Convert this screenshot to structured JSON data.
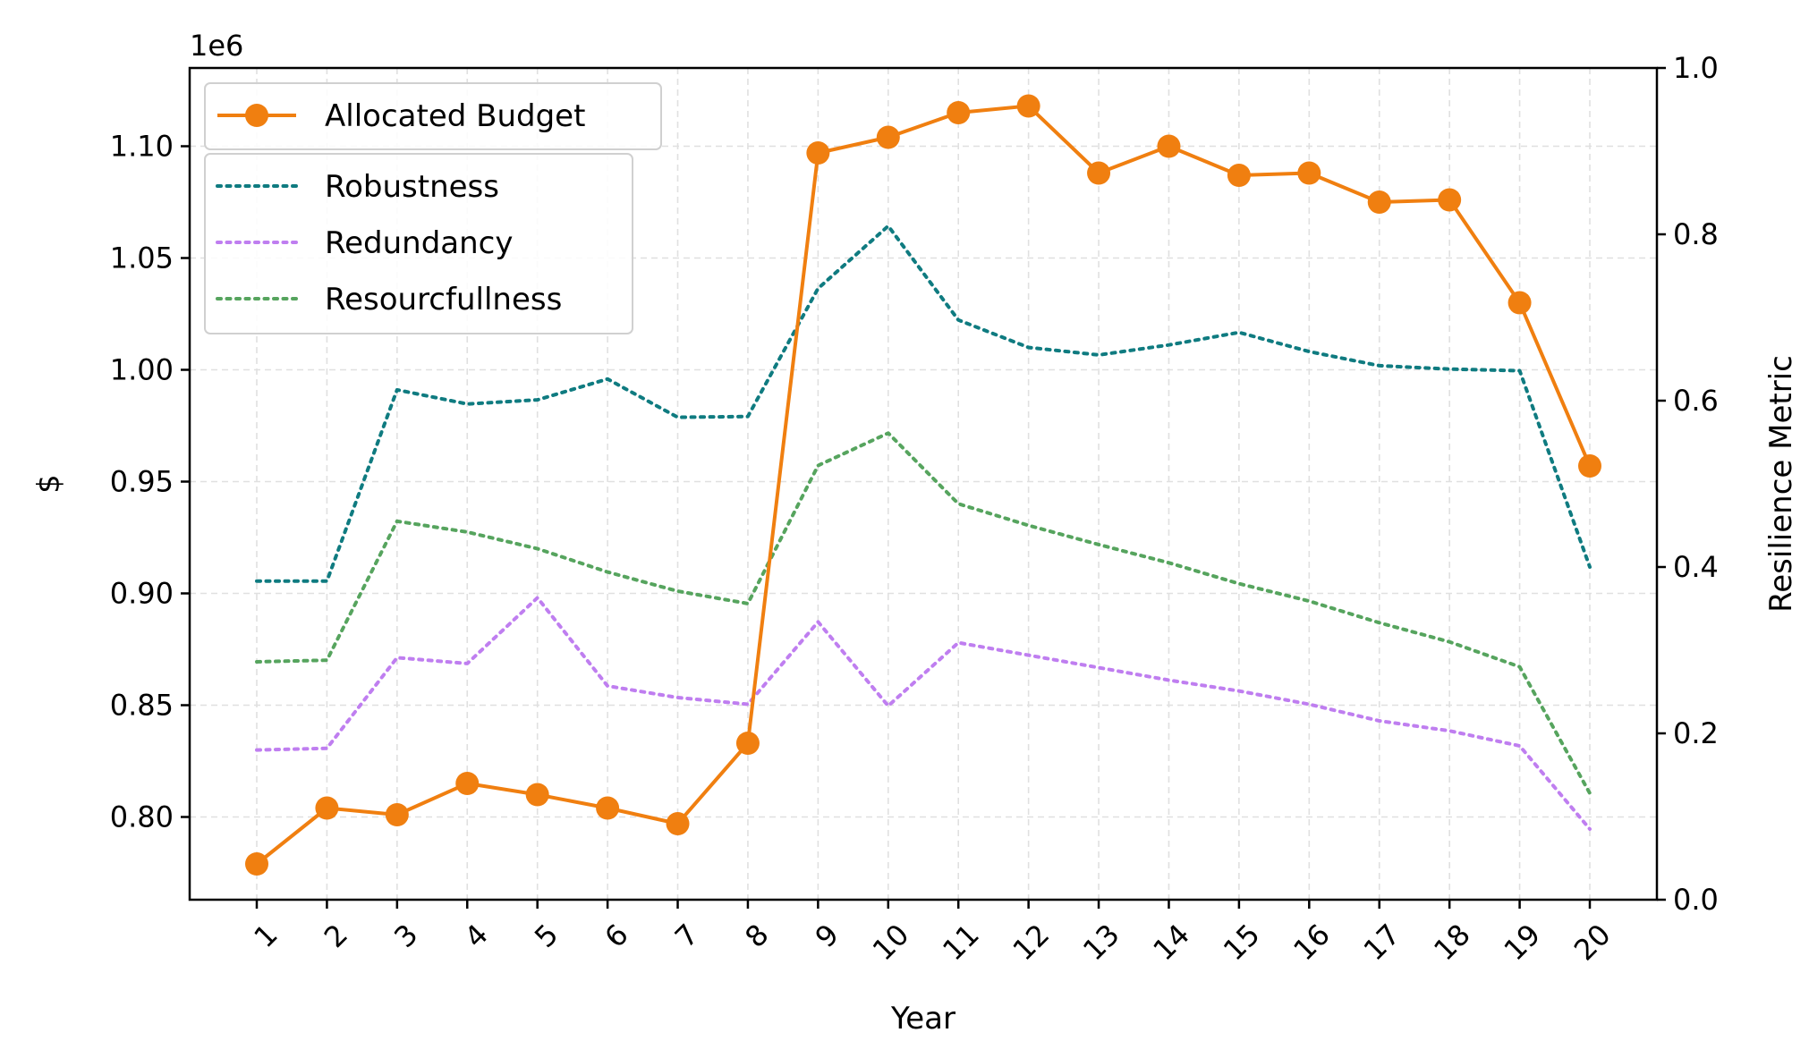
{
  "chart_data": {
    "type": "line",
    "xlabel": "Year",
    "ylabel_left": "$",
    "ylabel_right": "Resilience Metric",
    "left_axis_multiplier": "1e6",
    "categories": [
      "1",
      "2",
      "3",
      "4",
      "5",
      "6",
      "7",
      "8",
      "9",
      "10",
      "11",
      "12",
      "13",
      "14",
      "15",
      "16",
      "17",
      "18",
      "19",
      "20"
    ],
    "ylim_left": [
      0.763,
      1.135
    ],
    "ylim_right": [
      0.0,
      1.0
    ],
    "yticks_left": [
      "0.80",
      "0.85",
      "0.90",
      "0.95",
      "1.00",
      "1.05",
      "1.10"
    ],
    "yticks_right": [
      "0.0",
      "0.2",
      "0.4",
      "0.6",
      "0.8",
      "1.0"
    ],
    "grid": true,
    "series": [
      {
        "name": "Allocated Budget",
        "axis": "left",
        "color": "#f07f10",
        "style": "solid-marker",
        "values": [
          0.779,
          0.804,
          0.801,
          0.815,
          0.81,
          0.804,
          0.797,
          0.833,
          1.097,
          1.104,
          1.115,
          1.118,
          1.088,
          1.1,
          1.087,
          1.088,
          1.075,
          1.076,
          1.03,
          0.957
        ]
      },
      {
        "name": "Robustness",
        "axis": "right",
        "color": "#0f7b80",
        "style": "dotted",
        "values": [
          0.383,
          0.383,
          0.613,
          0.596,
          0.601,
          0.626,
          0.58,
          0.581,
          0.735,
          0.81,
          0.697,
          0.664,
          0.655,
          0.667,
          0.682,
          0.659,
          0.642,
          0.638,
          0.636,
          0.4
        ]
      },
      {
        "name": "Redundancy",
        "axis": "right",
        "color": "#bf7ef0",
        "style": "dotted",
        "values": [
          0.18,
          0.182,
          0.291,
          0.284,
          0.363,
          0.257,
          0.243,
          0.235,
          0.334,
          0.233,
          0.309,
          0.294,
          0.279,
          0.264,
          0.251,
          0.235,
          0.215,
          0.203,
          0.185,
          0.085
        ]
      },
      {
        "name": "Resourcfullness",
        "axis": "right",
        "color": "#56a45e",
        "style": "dotted",
        "values": [
          0.286,
          0.288,
          0.455,
          0.442,
          0.422,
          0.394,
          0.371,
          0.356,
          0.522,
          0.561,
          0.476,
          0.45,
          0.427,
          0.405,
          0.38,
          0.359,
          0.333,
          0.31,
          0.28,
          0.128
        ]
      }
    ]
  }
}
